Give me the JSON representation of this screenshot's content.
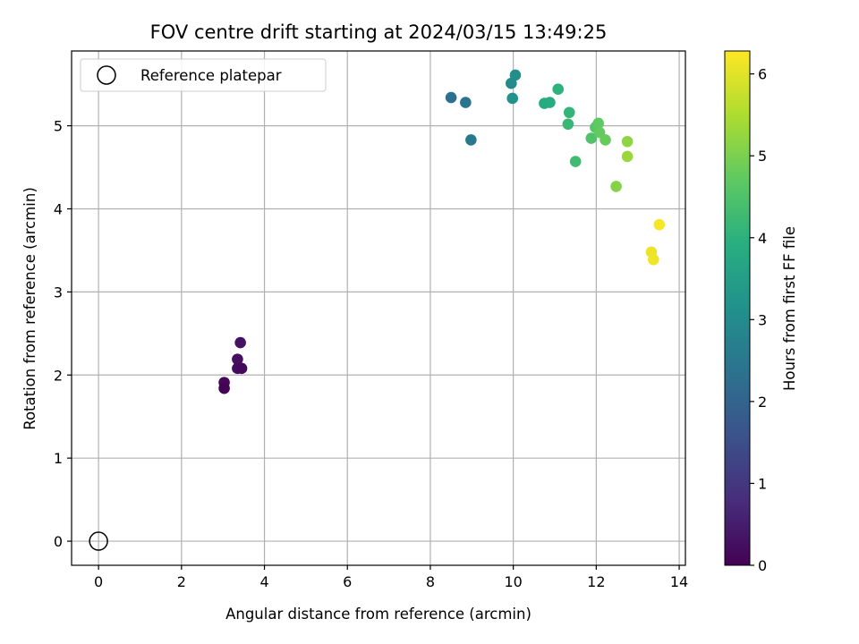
{
  "chart_data": {
    "type": "scatter",
    "title": "FOV centre drift starting at 2024/03/15 13:49:25",
    "xlabel": "Angular distance from reference (arcmin)",
    "ylabel": "Rotation from reference (arcmin)",
    "xlim": [
      -0.65,
      14.15
    ],
    "ylim": [
      -0.29,
      5.9
    ],
    "xticks": [
      0,
      2,
      4,
      6,
      8,
      10,
      12,
      14
    ],
    "yticks": [
      0,
      1,
      2,
      3,
      4,
      5
    ],
    "grid": true,
    "legend": {
      "placement": "top-left",
      "entries": [
        "Reference platepar"
      ]
    },
    "reference_point": {
      "x": 0,
      "y": 0,
      "label": "Reference platepar"
    },
    "colorbar": {
      "label": "Hours from first FF file",
      "range": [
        0,
        6.28
      ],
      "ticks": [
        0,
        1,
        2,
        3,
        4,
        5,
        6
      ],
      "colormap": "viridis"
    },
    "series": [
      {
        "points": [
          {
            "x": 3.42,
            "y": 2.39,
            "c": 0.3
          },
          {
            "x": 3.35,
            "y": 2.19,
            "c": 0.25
          },
          {
            "x": 3.35,
            "y": 2.08,
            "c": 0.2
          },
          {
            "x": 3.45,
            "y": 2.08,
            "c": 0.15
          },
          {
            "x": 3.03,
            "y": 1.91,
            "c": 0.1
          },
          {
            "x": 3.03,
            "y": 1.84,
            "c": 0.05
          },
          {
            "x": 8.5,
            "y": 5.34,
            "c": 2.3
          },
          {
            "x": 8.85,
            "y": 5.28,
            "c": 2.4
          },
          {
            "x": 8.98,
            "y": 4.83,
            "c": 2.5
          },
          {
            "x": 9.95,
            "y": 5.51,
            "c": 3.0
          },
          {
            "x": 10.05,
            "y": 5.61,
            "c": 3.1
          },
          {
            "x": 9.98,
            "y": 5.33,
            "c": 3.2
          },
          {
            "x": 10.75,
            "y": 5.27,
            "c": 3.8
          },
          {
            "x": 10.88,
            "y": 5.28,
            "c": 3.85
          },
          {
            "x": 11.08,
            "y": 5.44,
            "c": 4.0
          },
          {
            "x": 11.35,
            "y": 5.16,
            "c": 4.1
          },
          {
            "x": 11.32,
            "y": 5.02,
            "c": 4.2
          },
          {
            "x": 11.5,
            "y": 4.57,
            "c": 4.3
          },
          {
            "x": 11.88,
            "y": 4.85,
            "c": 4.5
          },
          {
            "x": 11.98,
            "y": 4.98,
            "c": 4.6
          },
          {
            "x": 12.05,
            "y": 5.03,
            "c": 4.7
          },
          {
            "x": 12.08,
            "y": 4.92,
            "c": 4.75
          },
          {
            "x": 12.22,
            "y": 4.83,
            "c": 4.8
          },
          {
            "x": 12.48,
            "y": 4.27,
            "c": 5.1
          },
          {
            "x": 12.75,
            "y": 4.81,
            "c": 5.2
          },
          {
            "x": 12.75,
            "y": 4.63,
            "c": 5.3
          },
          {
            "x": 13.52,
            "y": 3.81,
            "c": 6.2
          },
          {
            "x": 13.33,
            "y": 3.48,
            "c": 6.1
          },
          {
            "x": 13.38,
            "y": 3.39,
            "c": 6.15
          }
        ]
      }
    ]
  }
}
